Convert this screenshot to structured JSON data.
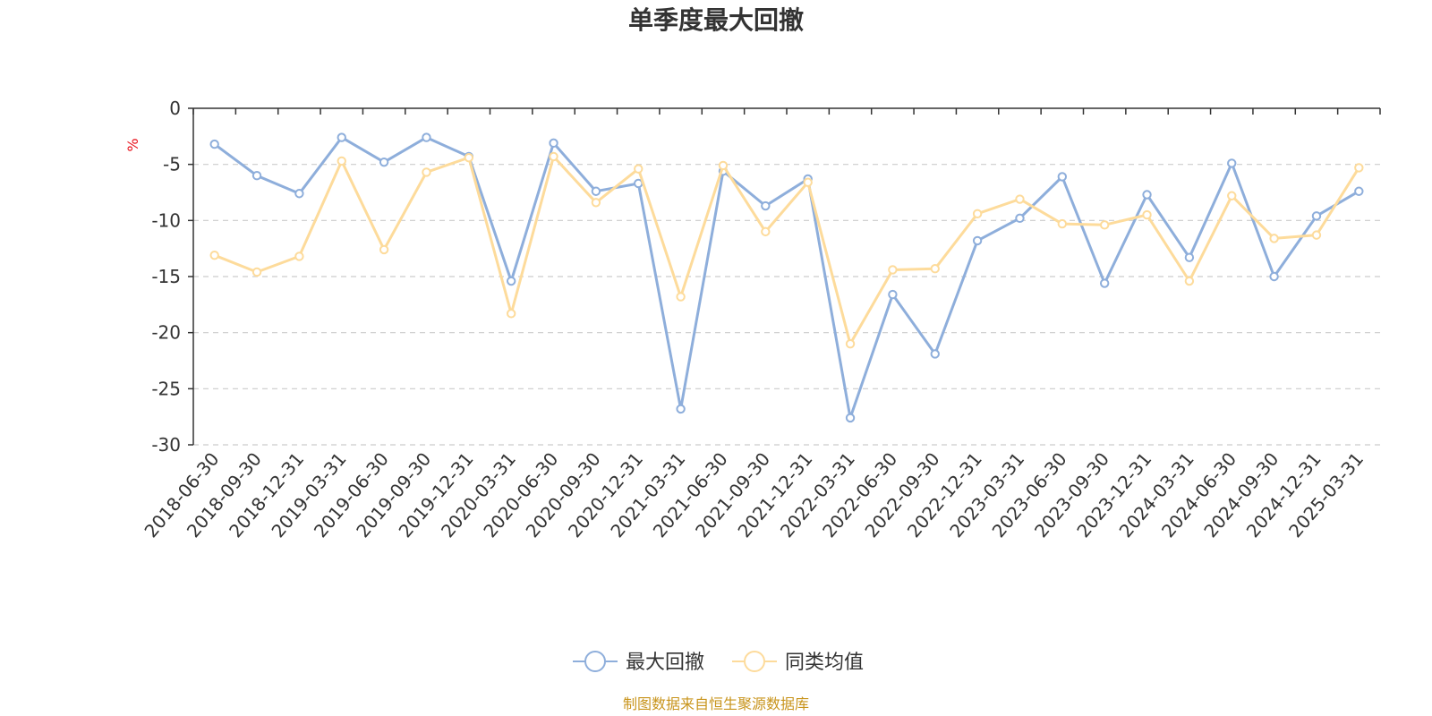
{
  "chart_data": {
    "type": "line",
    "title": "单季度最大回撤",
    "ylabel": "%",
    "xlabel": "",
    "ylim": [
      -30,
      0
    ],
    "yticks": [
      0,
      -5,
      -10,
      -15,
      -20,
      -25,
      -30
    ],
    "grid": true,
    "legend_position": "bottom-center",
    "categories": [
      "2018-06-30",
      "2018-09-30",
      "2018-12-31",
      "2019-03-31",
      "2019-06-30",
      "2019-09-30",
      "2019-12-31",
      "2020-03-31",
      "2020-06-30",
      "2020-09-30",
      "2020-12-31",
      "2021-03-31",
      "2021-06-30",
      "2021-09-30",
      "2021-12-31",
      "2022-03-31",
      "2022-06-30",
      "2022-09-30",
      "2022-12-31",
      "2023-03-31",
      "2023-06-30",
      "2023-09-30",
      "2023-12-31",
      "2024-03-31",
      "2024-06-30",
      "2024-09-30",
      "2024-12-31",
      "2025-03-31"
    ],
    "series": [
      {
        "name": "最大回撤",
        "color": "#8eaedb",
        "values": [
          -3.2,
          -6.0,
          -7.6,
          -2.6,
          -4.8,
          -2.6,
          -4.3,
          -15.4,
          -3.1,
          -7.4,
          -6.7,
          -26.8,
          -5.6,
          -8.7,
          -6.3,
          -27.6,
          -16.6,
          -21.9,
          -11.8,
          -9.8,
          -6.1,
          -15.6,
          -7.7,
          -13.3,
          -4.9,
          -15.0,
          -9.6,
          -7.4
        ]
      },
      {
        "name": "同类均值",
        "color": "#fddb9b",
        "values": [
          -13.1,
          -14.6,
          -13.2,
          -4.7,
          -12.6,
          -5.7,
          -4.4,
          -18.3,
          -4.3,
          -8.4,
          -5.4,
          -16.8,
          -5.1,
          -11.0,
          -6.6,
          -21.0,
          -14.4,
          -14.3,
          -9.4,
          -8.1,
          -10.3,
          -10.4,
          -9.5,
          -15.4,
          -7.8,
          -11.6,
          -11.3,
          -5.3
        ]
      }
    ]
  },
  "footer": {
    "source": "制图数据来自恒生聚源数据库"
  }
}
